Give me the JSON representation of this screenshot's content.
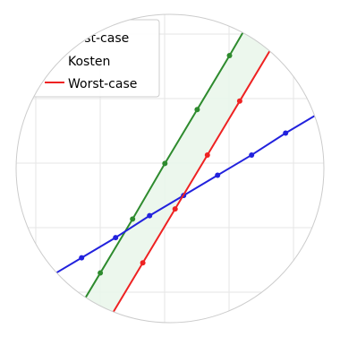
{
  "chart_data": {
    "type": "line",
    "title": "",
    "xlabel": "",
    "ylabel": "",
    "xlim": [
      0,
      10
    ],
    "ylim": [
      0,
      10
    ],
    "grid": true,
    "legend_position": "top-left",
    "shaded_region": {
      "between": [
        "Best-case",
        "Worst-case"
      ],
      "color": "#e9f6ea"
    },
    "series": [
      {
        "name": "Best-case",
        "color": "#2e8b2e",
        "x": [
          2.0,
          2.95,
          3.9,
          4.85,
          5.8,
          6.75,
          7.7
        ],
        "y": [
          0.3,
          1.9,
          3.5,
          5.15,
          6.75,
          8.35,
          10.0
        ]
      },
      {
        "name": "Kosten",
        "color": "#2222dd",
        "x": [
          1.4,
          2.4,
          3.4,
          4.4,
          5.4,
          6.4,
          7.4,
          8.4,
          9.4
        ],
        "y": [
          1.75,
          2.35,
          2.95,
          3.6,
          4.2,
          4.8,
          5.4,
          6.05,
          6.65
        ]
      },
      {
        "name": "Worst-case",
        "color": "#ee2222",
        "x": [
          3.25,
          4.2,
          5.15,
          6.1,
          7.05,
          8.0,
          8.95
        ],
        "y": [
          0.6,
          2.2,
          3.8,
          5.4,
          7.0,
          8.6,
          10.2
        ]
      }
    ]
  }
}
